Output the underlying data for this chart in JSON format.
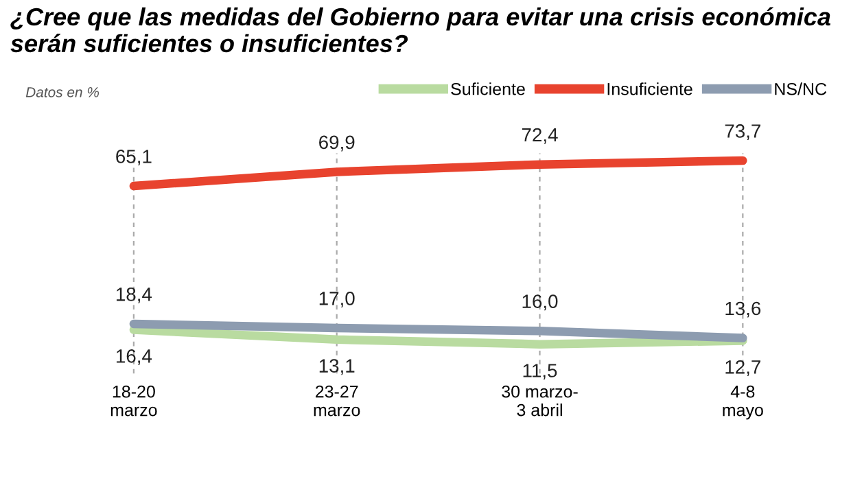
{
  "chart_data": {
    "type": "line",
    "title": "¿Cree que las medidas del Gobierno para evitar una crisis económica\nserán suficientes o insuficientes?",
    "annotations": [
      "Datos en %"
    ],
    "categories": [
      "18-20\nmarzo",
      "23-27\nmarzo",
      "30 marzo-\n3 abril",
      "4-8\nmayo"
    ],
    "series": [
      {
        "name": "Suficiente",
        "color": "#b9dba0",
        "values": [
          16.4,
          13.1,
          11.5,
          12.7
        ],
        "value_labels": [
          "16,4",
          "13,1",
          "11,5",
          "12,7"
        ]
      },
      {
        "name": "Insuficiente",
        "color": "#e8432e",
        "values": [
          65.1,
          69.9,
          72.4,
          73.7
        ],
        "value_labels": [
          "65,1",
          "69,9",
          "72,4",
          "73,7"
        ]
      },
      {
        "name": "NS/NC",
        "color": "#8d9cb0",
        "values": [
          18.4,
          17.0,
          16.0,
          13.6
        ],
        "value_labels": [
          "18,4",
          "17,0",
          "16,0",
          "13,6"
        ]
      }
    ],
    "grid": "x",
    "legend": "top right",
    "marker": "none",
    "line_style": "solid"
  }
}
